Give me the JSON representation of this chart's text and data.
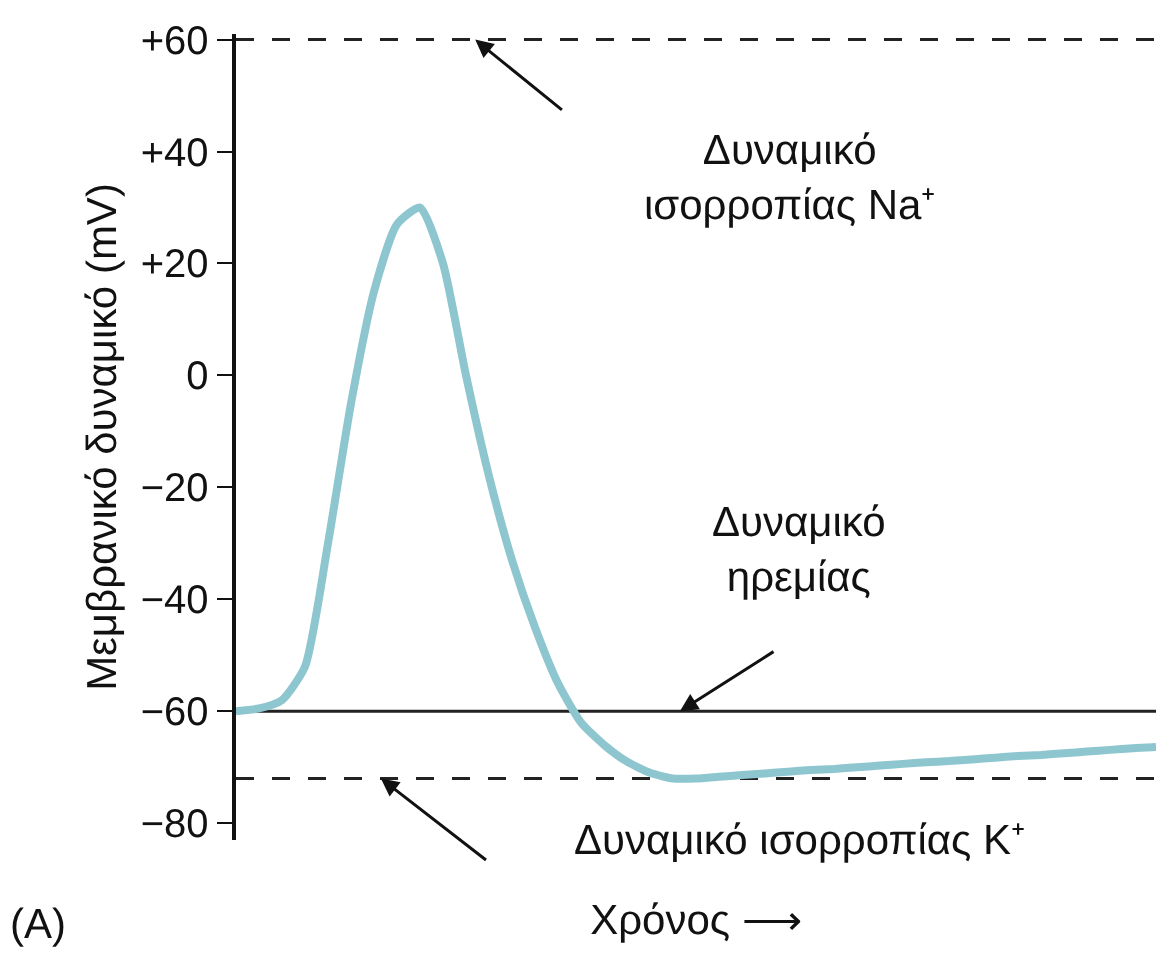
{
  "chart_data": {
    "type": "line",
    "xlabel": "Χρόνος ⟶",
    "ylabel": "Μεμβρανικό δυναμικό (mV)",
    "categories": [
      null,
      null,
      null,
      null,
      null,
      null,
      null,
      null,
      null,
      null,
      null,
      null,
      null,
      null,
      null,
      null,
      null,
      null,
      null,
      null,
      null,
      null,
      null,
      null,
      null,
      null,
      null,
      null,
      null,
      null,
      null,
      null,
      null,
      null,
      null,
      null,
      null,
      null,
      null,
      null,
      null
    ],
    "series": [
      {
        "color": "#8ec6d0",
        "values": [
          -60,
          -59.5,
          -58,
          -52,
          -30,
          -5,
          15,
          27,
          30,
          20,
          0,
          -18,
          -33,
          -45,
          -55,
          -62,
          -66,
          -69,
          -71,
          -72,
          -72,
          -71.7,
          -71.4,
          -71.1,
          -70.8,
          -70.5,
          -70.3,
          -70,
          -69.7,
          -69.4,
          -69.1,
          -68.9,
          -68.6,
          -68.3,
          -68,
          -67.8,
          -67.5,
          -67.2,
          -66.9,
          -66.6,
          -66.4
        ]
      }
    ],
    "ylim": [
      -83,
      61
    ],
    "yticks": [
      {
        "value": 60,
        "label": "+60"
      },
      {
        "value": 40,
        "label": "+40"
      },
      {
        "value": 20,
        "label": "+20"
      },
      0,
      {
        "value": -20,
        "label": "−20"
      },
      {
        "value": -40,
        "label": "−40"
      },
      {
        "value": -60,
        "label": "−60"
      },
      {
        "value": -80,
        "label": "−80"
      }
    ],
    "ref_lines": [
      {
        "axis": "y",
        "value": 60,
        "label": "Δυναμικό\nισορροπίας Na⁺",
        "line_style": "dashed",
        "color": "#222222"
      },
      {
        "axis": "y",
        "value": -60,
        "label": "Δυναμικό\nηρεμίας",
        "line_style": "solid",
        "color": "#222222"
      },
      {
        "axis": "y",
        "value": -72,
        "label": "Δυναμικό ισορροπίας K⁺",
        "line_style": "dashed",
        "color": "#222222"
      }
    ],
    "annotations": [
      "(A)"
    ],
    "grid": false,
    "tick_labels": "y",
    "line_style": "solid",
    "marker": "none"
  }
}
